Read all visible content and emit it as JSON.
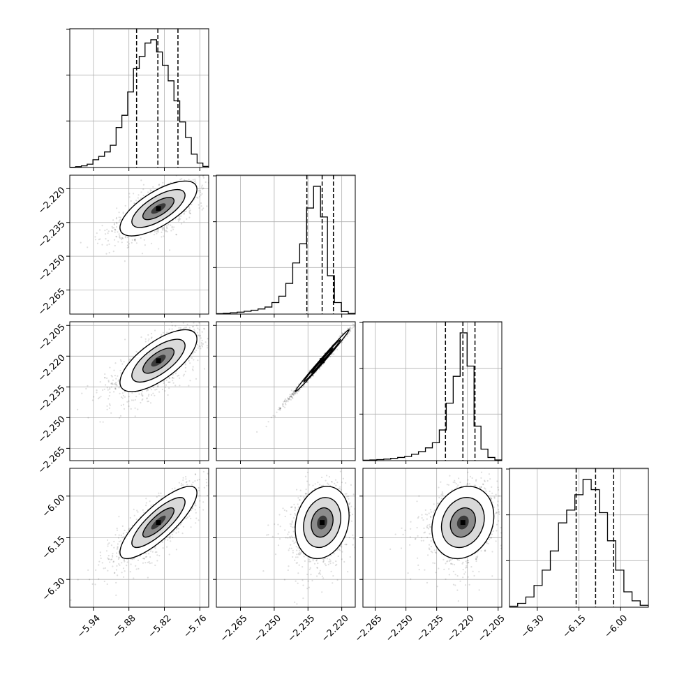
{
  "chart_data": {
    "type": "corner",
    "title": "",
    "grid": true,
    "parameters": [
      {
        "range": [
          -5.98,
          -5.745
        ],
        "ticks": [
          "−5.94",
          "−5.88",
          "−5.82",
          "−5.76"
        ],
        "tick_values": [
          -5.94,
          -5.88,
          -5.82,
          -5.76
        ]
      },
      {
        "range": [
          -2.2757,
          -2.214
        ],
        "ticks": [
          "−2.265",
          "−2.250",
          "−2.235",
          "−2.220"
        ],
        "tick_values": [
          -2.265,
          -2.25,
          -2.235,
          -2.22
        ]
      },
      {
        "range": [
          -2.271,
          -2.2032
        ],
        "ticks": [
          "−2.265",
          "−2.250",
          "−2.235",
          "−2.220",
          "−2.205"
        ],
        "tick_values": [
          -2.265,
          -2.25,
          -2.235,
          -2.22,
          -2.205
        ]
      },
      {
        "range": [
          -6.4,
          -5.9
        ],
        "ticks": [
          "−6.30",
          "−6.15",
          "−6.00"
        ],
        "tick_values": [
          -6.3,
          -6.15,
          -6.0
        ]
      }
    ],
    "quantiles": [
      [
        -5.867,
        -5.831,
        -5.797
      ],
      [
        -2.2355,
        -2.2287,
        -2.2237
      ],
      [
        -2.2307,
        -2.2222,
        -2.2163
      ],
      [
        -6.16,
        -6.09,
        -6.025
      ]
    ],
    "histograms": [
      [
        0.2,
        0.8,
        1.5,
        3,
        7,
        10,
        14,
        20,
        36,
        47,
        68,
        89,
        100,
        112,
        115,
        104,
        92,
        78,
        60,
        41,
        27,
        12,
        4,
        1
      ],
      [
        0.3,
        0.6,
        1,
        1.5,
        2.2,
        3,
        4,
        5.5,
        9,
        14,
        24,
        40,
        55,
        83,
        100,
        76,
        30,
        9,
        2,
        0.5
      ],
      [
        0.3,
        0.5,
        0.8,
        1.2,
        1.8,
        2.5,
        3.2,
        5,
        7,
        10,
        14,
        24,
        45,
        66,
        100,
        74,
        27,
        9,
        2.5,
        0.5
      ],
      [
        0.8,
        3,
        8,
        17,
        29,
        44,
        66,
        76,
        88,
        100,
        92,
        74,
        52,
        29,
        12,
        5,
        1.5
      ]
    ],
    "scatter_2d": [
      {
        "row": 1,
        "col": 0,
        "center": [
          -5.83,
          -2.2288
        ],
        "sd": [
          0.031,
          0.0058
        ],
        "corr": 0.7
      },
      {
        "row": 2,
        "col": 0,
        "center": [
          -5.83,
          -2.2222
        ],
        "sd": [
          0.031,
          0.0072
        ],
        "corr": 0.7
      },
      {
        "row": 2,
        "col": 1,
        "center": [
          -2.2287,
          -2.2222
        ],
        "sd": [
          0.0057,
          0.0072
        ],
        "corr": 0.995
      },
      {
        "row": 3,
        "col": 0,
        "center": [
          -5.83,
          -6.095
        ],
        "sd": [
          0.031,
          0.062
        ],
        "corr": 0.82
      },
      {
        "row": 3,
        "col": 1,
        "center": [
          -2.2287,
          -6.095
        ],
        "sd": [
          0.0057,
          0.062
        ],
        "corr": 0.18
      },
      {
        "row": 3,
        "col": 2,
        "center": [
          -2.2222,
          -6.095
        ],
        "sd": [
          0.0072,
          0.062
        ],
        "corr": 0.18
      }
    ]
  }
}
